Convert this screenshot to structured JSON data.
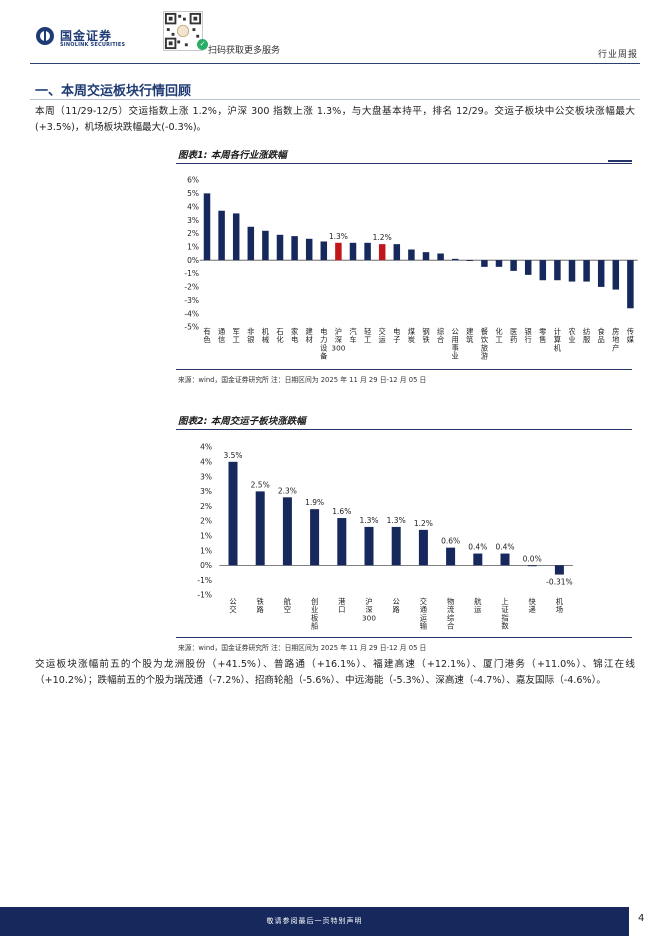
{
  "header": {
    "brand_cn": "国金证券",
    "brand_en": "SINOLINK SECURITIES",
    "scan_text": "扫码获取更多服务",
    "report_type": "行业周报"
  },
  "section": {
    "title": "一、本周交运板块行情回顾"
  },
  "paragraphs": {
    "p1": "本周（11/29-12/5）交运指数上涨 1.2%，沪深 300 指数上涨 1.3%，与大盘基本持平，排名 12/29。交运子板块中公交板块涨幅最大(+3.5%)，机场板块跌幅最大(-0.3%)。",
    "p2": "交运板块涨幅前五的个股为龙洲股份（+41.5%）、普路通（+16.1%）、福建高速（+12.1%）、厦门港务（+11.0%）、锦江在线（+10.2%）；跌幅前五的个股为瑞茂通（-7.2%）、招商轮船（-5.6%）、中远海能（-5.3%）、深高速（-4.7%）、嘉友国际（-4.6%）。"
  },
  "figure1": {
    "title": "图表1:  本周各行业涨跌幅",
    "source": "来源：wind，国金证券研究所    注：日期区间为 2025 年 11 月 29 日-12 月 05 日"
  },
  "figure2": {
    "title": "图表2:  本周交运子板块涨跌幅",
    "source": "来源：wind，国金证券研究所    注：日期区间为 2025 年 11 月 29 日-12 月 05 日"
  },
  "colors": {
    "bar": "#16285c",
    "highlight": "#c0171c",
    "brand": "#1f3b73"
  },
  "chart_data": [
    {
      "type": "bar",
      "ylim": [
        -5,
        6
      ],
      "yticks": [
        "6%",
        "5%",
        "4%",
        "3%",
        "2%",
        "1%",
        "0%",
        "-1%",
        "-2%",
        "-3%",
        "-4%",
        "-5%"
      ],
      "categories": [
        "有色",
        "通信",
        "军工",
        "非银",
        "机械",
        "石化",
        "家电",
        "建材",
        "电力设备",
        "沪深300",
        "汽车",
        "轻工",
        "交运",
        "电子",
        "煤炭",
        "钢铁",
        "综合",
        "公用事业",
        "建筑",
        "餐饮旅游",
        "化工",
        "医药",
        "银行",
        "零售",
        "计算机",
        "农业",
        "纺服",
        "食品",
        "房地产",
        "传媒"
      ],
      "values": [
        5.0,
        3.7,
        3.5,
        2.5,
        2.2,
        1.9,
        1.8,
        1.6,
        1.4,
        1.3,
        1.3,
        1.3,
        1.2,
        1.2,
        0.8,
        0.6,
        0.5,
        0.1,
        0.0,
        -0.5,
        -0.5,
        -0.8,
        -1.1,
        -1.5,
        -1.5,
        -1.6,
        -1.6,
        -2.0,
        -2.2,
        -3.6
      ],
      "highlight": [
        "沪深300",
        "交运"
      ],
      "data_labels": [
        {
          "category": "沪深300",
          "text": "1.3%"
        },
        {
          "category": "交运",
          "text": "1.2%"
        }
      ]
    },
    {
      "type": "bar",
      "ylim": [
        -1,
        4
      ],
      "yticks": [
        "4%",
        "4%",
        "3%",
        "3%",
        "2%",
        "2%",
        "1%",
        "1%",
        "0%",
        "-1%",
        "-1%"
      ],
      "categories": [
        "公交",
        "铁路",
        "航空",
        "创业板船",
        "港口",
        "沪深300",
        "公路",
        "交通运输",
        "物流综合",
        "航运",
        "上证指数",
        "快递",
        "机场"
      ],
      "values": [
        3.5,
        2.5,
        2.3,
        1.9,
        1.6,
        1.3,
        1.3,
        1.2,
        0.6,
        0.4,
        0.4,
        0.0,
        -0.31
      ],
      "data_labels": [
        "3.5%",
        "2.5%",
        "2.3%",
        "1.9%",
        "1.6%",
        "1.3%",
        "1.3%",
        "1.2%",
        "0.6%",
        "0.4%",
        "0.4%",
        "0.0%",
        "-0.31%"
      ]
    }
  ],
  "footer": {
    "disclaimer": "敬请参阅最后一页特别声明",
    "page_number": "4"
  }
}
